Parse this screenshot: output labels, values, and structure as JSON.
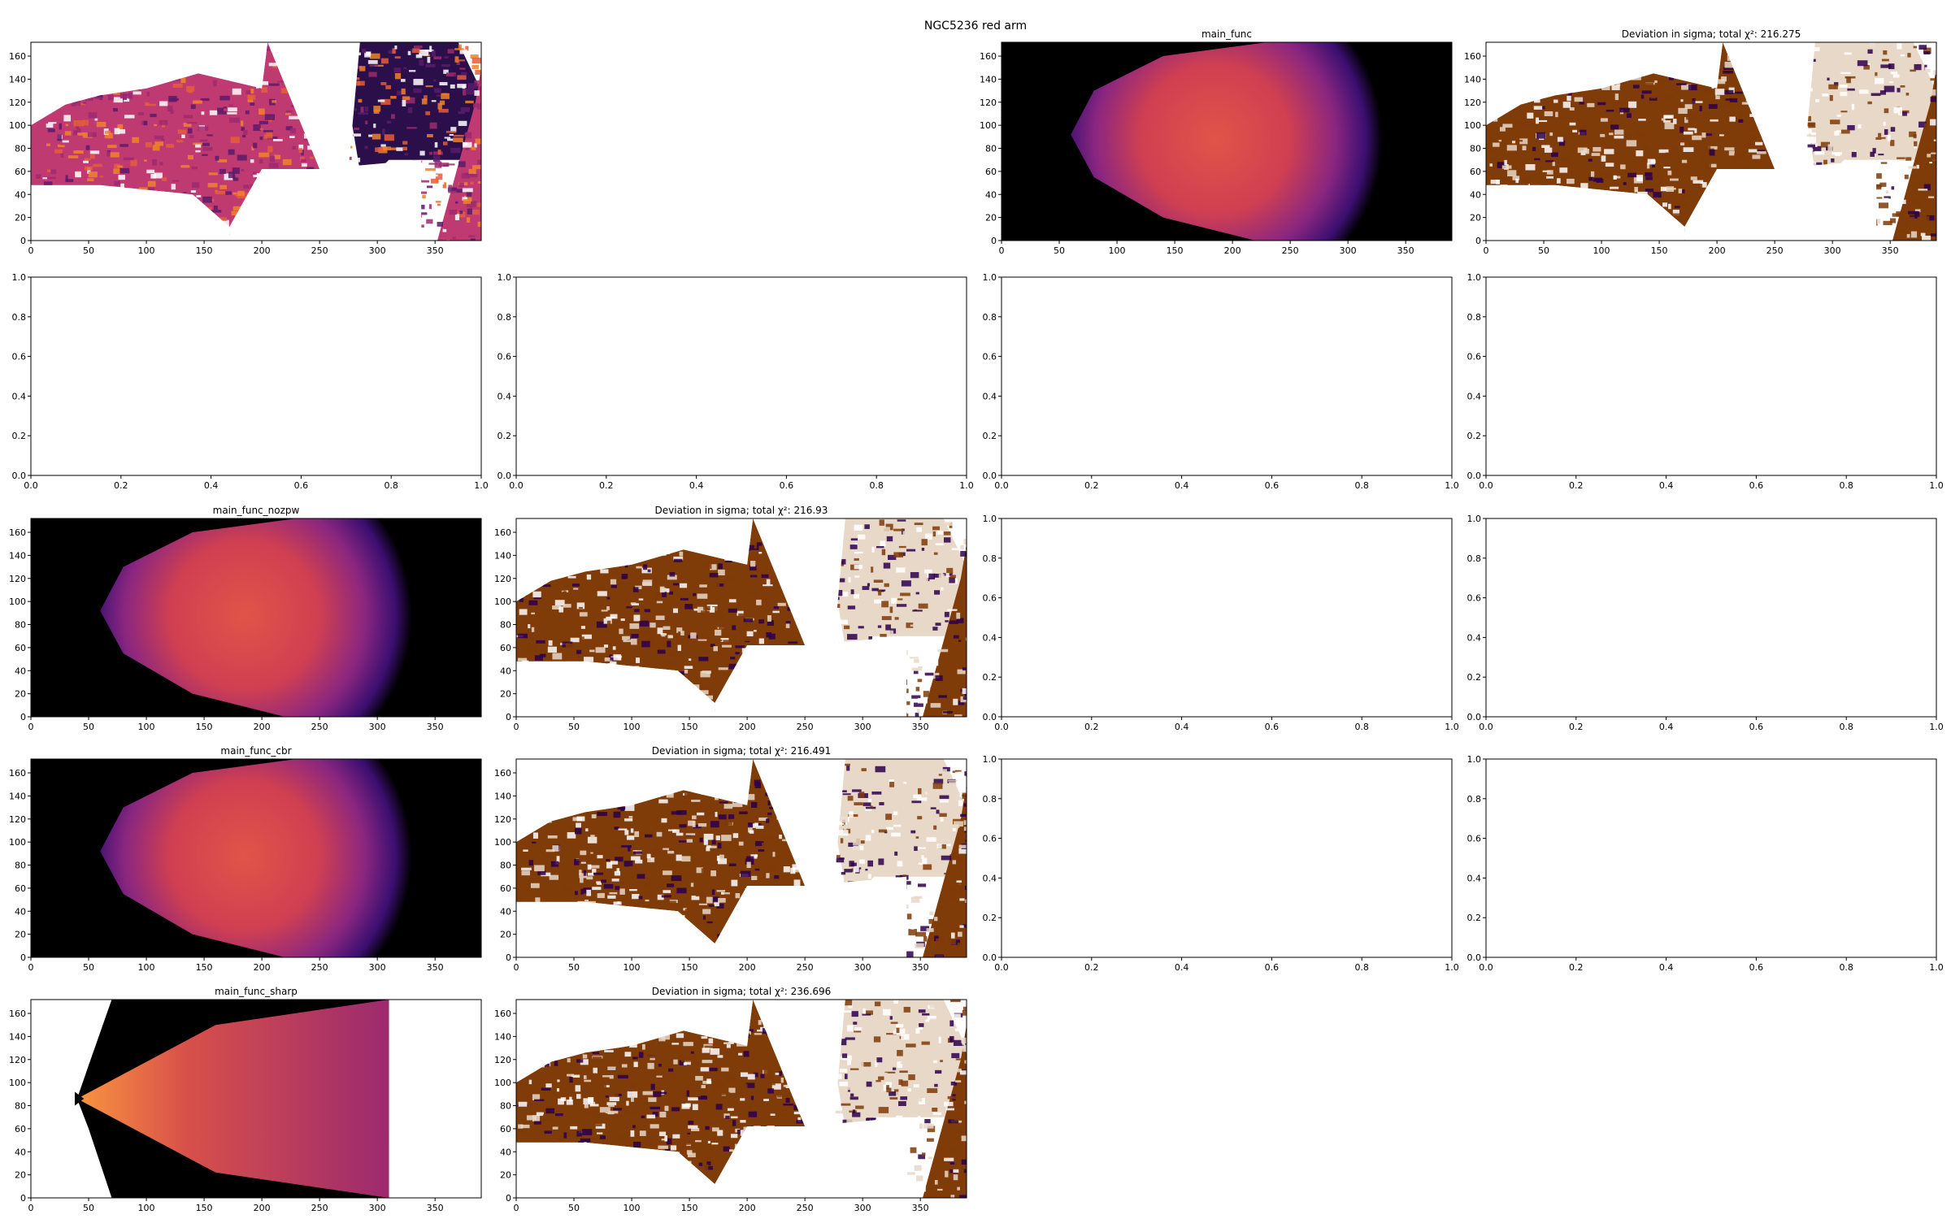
{
  "figure": {
    "suptitle": "NGC5236 red arm"
  },
  "colors": {
    "black": "#000000",
    "magma_dark": "#2b0f4a",
    "magma_purple": "#6a1d78",
    "magma_red": "#d44a3f",
    "magma_orange": "#f0832a",
    "dev_brown": "#7f3b08",
    "dev_indigo": "#2d004b",
    "dev_light": "#e8d8c8"
  },
  "chart_data": [
    {
      "id": "r1c1",
      "type": "heatmap",
      "variant": "data",
      "title": "",
      "xlim": [
        0,
        390
      ],
      "ylim": [
        0,
        172
      ],
      "xticks": [
        0,
        50,
        100,
        150,
        200,
        250,
        300,
        350
      ],
      "yticks": [
        0,
        20,
        40,
        60,
        80,
        100,
        120,
        140,
        160
      ]
    },
    {
      "id": "r1c3",
      "type": "heatmap",
      "variant": "model",
      "title": "main_func",
      "xlim": [
        0,
        390
      ],
      "ylim": [
        0,
        172
      ],
      "xticks": [
        0,
        50,
        100,
        150,
        200,
        250,
        300,
        350
      ],
      "yticks": [
        0,
        20,
        40,
        60,
        80,
        100,
        120,
        140,
        160
      ]
    },
    {
      "id": "r1c4",
      "type": "heatmap",
      "variant": "deviation",
      "title": "Deviation in sigma; total χ²: 216.275",
      "xlim": [
        0,
        390
      ],
      "ylim": [
        0,
        172
      ],
      "xticks": [
        0,
        50,
        100,
        150,
        200,
        250,
        300,
        350
      ],
      "yticks": [
        0,
        20,
        40,
        60,
        80,
        100,
        120,
        140,
        160
      ]
    },
    {
      "id": "r2c1",
      "type": "empty",
      "title": "",
      "xlim": [
        0,
        1
      ],
      "ylim": [
        0,
        1
      ],
      "xticks": [
        "0.0",
        "0.2",
        "0.4",
        "0.6",
        "0.8",
        "1.0"
      ],
      "yticks": [
        "0.0",
        "0.2",
        "0.4",
        "0.6",
        "0.8",
        "1.0"
      ]
    },
    {
      "id": "r2c2",
      "type": "empty",
      "title": "",
      "xlim": [
        0,
        1
      ],
      "ylim": [
        0,
        1
      ],
      "xticks": [
        "0.0",
        "0.2",
        "0.4",
        "0.6",
        "0.8",
        "1.0"
      ],
      "yticks": [
        "0.0",
        "0.2",
        "0.4",
        "0.6",
        "0.8",
        "1.0"
      ]
    },
    {
      "id": "r2c3",
      "type": "empty",
      "title": "",
      "xlim": [
        0,
        1
      ],
      "ylim": [
        0,
        1
      ],
      "xticks": [
        "0.0",
        "0.2",
        "0.4",
        "0.6",
        "0.8",
        "1.0"
      ],
      "yticks": [
        "0.0",
        "0.2",
        "0.4",
        "0.6",
        "0.8",
        "1.0"
      ]
    },
    {
      "id": "r2c4",
      "type": "empty",
      "title": "",
      "xlim": [
        0,
        1
      ],
      "ylim": [
        0,
        1
      ],
      "xticks": [
        "0.0",
        "0.2",
        "0.4",
        "0.6",
        "0.8",
        "1.0"
      ],
      "yticks": [
        "0.0",
        "0.2",
        "0.4",
        "0.6",
        "0.8",
        "1.0"
      ]
    },
    {
      "id": "r3c1",
      "type": "heatmap",
      "variant": "model",
      "title": "main_func_nozpw",
      "xlim": [
        0,
        390
      ],
      "ylim": [
        0,
        172
      ],
      "xticks": [
        0,
        50,
        100,
        150,
        200,
        250,
        300,
        350
      ],
      "yticks": [
        0,
        20,
        40,
        60,
        80,
        100,
        120,
        140,
        160
      ]
    },
    {
      "id": "r3c2",
      "type": "heatmap",
      "variant": "deviation",
      "title": "Deviation in sigma; total χ²: 216.93",
      "xlim": [
        0,
        390
      ],
      "ylim": [
        0,
        172
      ],
      "xticks": [
        0,
        50,
        100,
        150,
        200,
        250,
        300,
        350
      ],
      "yticks": [
        0,
        20,
        40,
        60,
        80,
        100,
        120,
        140,
        160
      ]
    },
    {
      "id": "r3c3",
      "type": "empty",
      "title": "",
      "xlim": [
        0,
        1
      ],
      "ylim": [
        0,
        1
      ],
      "xticks": [
        "0.0",
        "0.2",
        "0.4",
        "0.6",
        "0.8",
        "1.0"
      ],
      "yticks": [
        "0.0",
        "0.2",
        "0.4",
        "0.6",
        "0.8",
        "1.0"
      ]
    },
    {
      "id": "r3c4",
      "type": "empty",
      "title": "",
      "xlim": [
        0,
        1
      ],
      "ylim": [
        0,
        1
      ],
      "xticks": [
        "0.0",
        "0.2",
        "0.4",
        "0.6",
        "0.8",
        "1.0"
      ],
      "yticks": [
        "0.0",
        "0.2",
        "0.4",
        "0.6",
        "0.8",
        "1.0"
      ]
    },
    {
      "id": "r4c1",
      "type": "heatmap",
      "variant": "model",
      "title": "main_func_cbr",
      "xlim": [
        0,
        390
      ],
      "ylim": [
        0,
        172
      ],
      "xticks": [
        0,
        50,
        100,
        150,
        200,
        250,
        300,
        350
      ],
      "yticks": [
        0,
        20,
        40,
        60,
        80,
        100,
        120,
        140,
        160
      ]
    },
    {
      "id": "r4c2",
      "type": "heatmap",
      "variant": "deviation",
      "title": "Deviation in sigma; total χ²: 216.491",
      "xlim": [
        0,
        390
      ],
      "ylim": [
        0,
        172
      ],
      "xticks": [
        0,
        50,
        100,
        150,
        200,
        250,
        300,
        350
      ],
      "yticks": [
        0,
        20,
        40,
        60,
        80,
        100,
        120,
        140,
        160
      ]
    },
    {
      "id": "r4c3",
      "type": "empty",
      "title": "",
      "xlim": [
        0,
        1
      ],
      "ylim": [
        0,
        1
      ],
      "xticks": [
        "0.0",
        "0.2",
        "0.4",
        "0.6",
        "0.8",
        "1.0"
      ],
      "yticks": [
        "0.0",
        "0.2",
        "0.4",
        "0.6",
        "0.8",
        "1.0"
      ]
    },
    {
      "id": "r4c4",
      "type": "empty",
      "title": "",
      "xlim": [
        0,
        1
      ],
      "ylim": [
        0,
        1
      ],
      "xticks": [
        "0.0",
        "0.2",
        "0.4",
        "0.6",
        "0.8",
        "1.0"
      ],
      "yticks": [
        "0.0",
        "0.2",
        "0.4",
        "0.6",
        "0.8",
        "1.0"
      ]
    },
    {
      "id": "r5c1",
      "type": "heatmap",
      "variant": "sharp",
      "title": "main_func_sharp",
      "xlim": [
        0,
        390
      ],
      "ylim": [
        0,
        172
      ],
      "xticks": [
        0,
        50,
        100,
        150,
        200,
        250,
        300,
        350
      ],
      "yticks": [
        0,
        20,
        40,
        60,
        80,
        100,
        120,
        140,
        160
      ]
    },
    {
      "id": "r5c2",
      "type": "heatmap",
      "variant": "deviation",
      "title": "Deviation in sigma; total χ²: 236.696",
      "xlim": [
        0,
        390
      ],
      "ylim": [
        0,
        172
      ],
      "xticks": [
        0,
        50,
        100,
        150,
        200,
        250,
        300,
        350
      ],
      "yticks": [
        0,
        20,
        40,
        60,
        80,
        100,
        120,
        140,
        160
      ]
    }
  ]
}
